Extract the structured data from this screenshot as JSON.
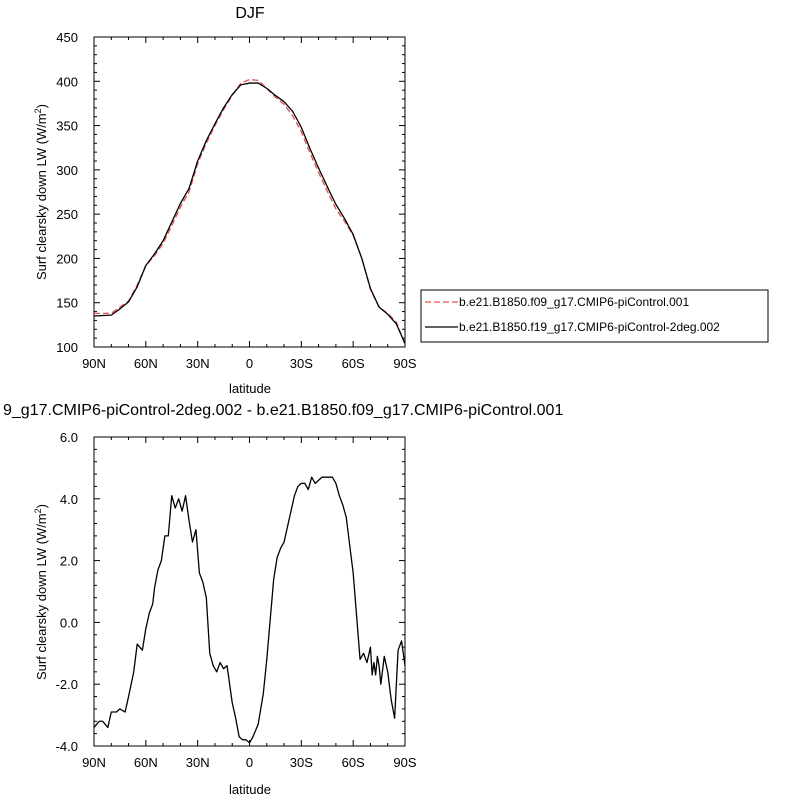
{
  "chart_data": [
    {
      "type": "line",
      "title": "DJF",
      "xlabel": "latitude",
      "ylabel_main": "Surf clearsky down LW (W/m",
      "ylabel_sup": "2",
      "ylabel_end": ")",
      "xticks": [
        {
          "lat": 90,
          "label": "90N"
        },
        {
          "lat": 60,
          "label": "60N"
        },
        {
          "lat": 30,
          "label": "30N"
        },
        {
          "lat": 0,
          "label": "0"
        },
        {
          "lat": -30,
          "label": "30S"
        },
        {
          "lat": -60,
          "label": "60S"
        },
        {
          "lat": -90,
          "label": "90S"
        }
      ],
      "xlim": [
        90,
        -90
      ],
      "ylim": [
        100,
        450
      ],
      "yticks": [
        {
          "value": 100,
          "label": "100"
        },
        {
          "value": 150,
          "label": "150"
        },
        {
          "value": 200,
          "label": "200"
        },
        {
          "value": 250,
          "label": "250"
        },
        {
          "value": 300,
          "label": "300"
        },
        {
          "value": 350,
          "label": "350"
        },
        {
          "value": 400,
          "label": "400"
        },
        {
          "value": 450,
          "label": "450"
        }
      ],
      "legend_position": "right",
      "series": [
        {
          "name": "b.e21.B1850.f09_g17.CMIP6-piControl.001",
          "color": "#e05050",
          "dash": "dashed",
          "x": [
            90,
            80,
            75,
            70,
            65,
            60,
            55,
            50,
            45,
            40,
            35,
            30,
            25,
            20,
            15,
            10,
            5,
            0,
            -5,
            -10,
            -15,
            -20,
            -25,
            -30,
            -35,
            -40,
            -45,
            -50,
            -55,
            -60,
            -65,
            -70,
            -75,
            -80,
            -85,
            -90
          ],
          "y": [
            138,
            138,
            145,
            152,
            170,
            192,
            203,
            217,
            237,
            258,
            275,
            307,
            330,
            350,
            368,
            384,
            398,
            402,
            401,
            392,
            382,
            374,
            361,
            343,
            319,
            297,
            276,
            256,
            242,
            226,
            200,
            165,
            145,
            138,
            128,
            103
          ]
        },
        {
          "name": "b.e21.B1850.f19_g17.CMIP6-piControl-2deg.002",
          "color": "#000000",
          "dash": "solid",
          "x": [
            90,
            80,
            75,
            70,
            65,
            60,
            55,
            50,
            45,
            40,
            35,
            30,
            25,
            20,
            15,
            10,
            5,
            0,
            -5,
            -10,
            -15,
            -20,
            -25,
            -30,
            -35,
            -40,
            -45,
            -50,
            -55,
            -60,
            -65,
            -70,
            -75,
            -80,
            -85,
            -90
          ],
          "y": [
            135,
            136,
            143,
            151,
            168,
            192,
            205,
            220,
            241,
            262,
            279,
            310,
            333,
            352,
            370,
            385,
            396,
            398,
            398,
            392,
            384,
            377,
            366,
            348,
            324,
            302,
            281,
            261,
            245,
            227,
            200,
            166,
            145,
            137,
            126,
            104
          ]
        }
      ]
    },
    {
      "type": "line",
      "title": "9_g17.CMIP6-piControl-2deg.002 - b.e21.B1850.f09_g17.CMIP6-piControl.001",
      "xlabel": "latitude",
      "ylabel_main": "Surf clearsky down LW (W/m",
      "ylabel_sup": "2",
      "ylabel_end": ")",
      "xticks": [
        {
          "lat": 90,
          "label": "90N"
        },
        {
          "lat": 60,
          "label": "60N"
        },
        {
          "lat": 30,
          "label": "30N"
        },
        {
          "lat": 0,
          "label": "0"
        },
        {
          "lat": -30,
          "label": "30S"
        },
        {
          "lat": -60,
          "label": "60S"
        },
        {
          "lat": -90,
          "label": "90S"
        }
      ],
      "xlim": [
        90,
        -90
      ],
      "ylim": [
        -4.0,
        6.0
      ],
      "yticks": [
        {
          "value": -4,
          "label": "-4.0"
        },
        {
          "value": -2,
          "label": "-2.0"
        },
        {
          "value": 0,
          "label": "0.0"
        },
        {
          "value": 2,
          "label": "2.0"
        },
        {
          "value": 4,
          "label": "4.0"
        },
        {
          "value": 6,
          "label": "6.0"
        }
      ],
      "series": [
        {
          "color": "#000000",
          "dash": "solid",
          "x": [
            90,
            87,
            85,
            82,
            80,
            77,
            75,
            72,
            70,
            67,
            65,
            62,
            60,
            58,
            56,
            55,
            53,
            51,
            49,
            47,
            45,
            43,
            41,
            39,
            37,
            35,
            33,
            31,
            29,
            27,
            25,
            23,
            21,
            19,
            17,
            15,
            13,
            10,
            8,
            6,
            4,
            2,
            0,
            -2,
            -5,
            -8,
            -10,
            -12,
            -14,
            -16,
            -18,
            -20,
            -22,
            -24,
            -26,
            -28,
            -30,
            -32,
            -34,
            -36,
            -38,
            -40,
            -42,
            -44,
            -46,
            -48,
            -50,
            -52,
            -54,
            -56,
            -58,
            -60,
            -62,
            -64,
            -66,
            -68,
            -70,
            -71,
            -72,
            -73,
            -74,
            -75,
            -76,
            -78,
            -80,
            -82,
            -84,
            -86,
            -88,
            -90
          ],
          "y": [
            -3.4,
            -3.2,
            -3.2,
            -3.4,
            -2.9,
            -2.9,
            -2.8,
            -2.9,
            -2.4,
            -1.6,
            -0.7,
            -0.9,
            -0.2,
            0.3,
            0.6,
            1.1,
            1.7,
            2.0,
            2.8,
            2.8,
            4.1,
            3.7,
            4.0,
            3.6,
            4.1,
            3.3,
            2.6,
            3.0,
            1.6,
            1.3,
            0.8,
            -1.0,
            -1.4,
            -1.6,
            -1.3,
            -1.5,
            -1.4,
            -2.6,
            -3.1,
            -3.7,
            -3.8,
            -3.8,
            -3.9,
            -3.7,
            -3.3,
            -2.3,
            -1.2,
            0.1,
            1.4,
            2.1,
            2.4,
            2.6,
            3.1,
            3.6,
            4.1,
            4.4,
            4.5,
            4.5,
            4.3,
            4.7,
            4.5,
            4.6,
            4.7,
            4.7,
            4.7,
            4.7,
            4.5,
            4.1,
            3.8,
            3.4,
            2.5,
            1.6,
            0.2,
            -1.2,
            -1.0,
            -1.3,
            -0.8,
            -1.7,
            -1.3,
            -1.7,
            -1.1,
            -1.4,
            -2.0,
            -1.1,
            -1.6,
            -2.5,
            -3.1,
            -0.9,
            -0.6,
            -1.4
          ]
        }
      ]
    }
  ]
}
